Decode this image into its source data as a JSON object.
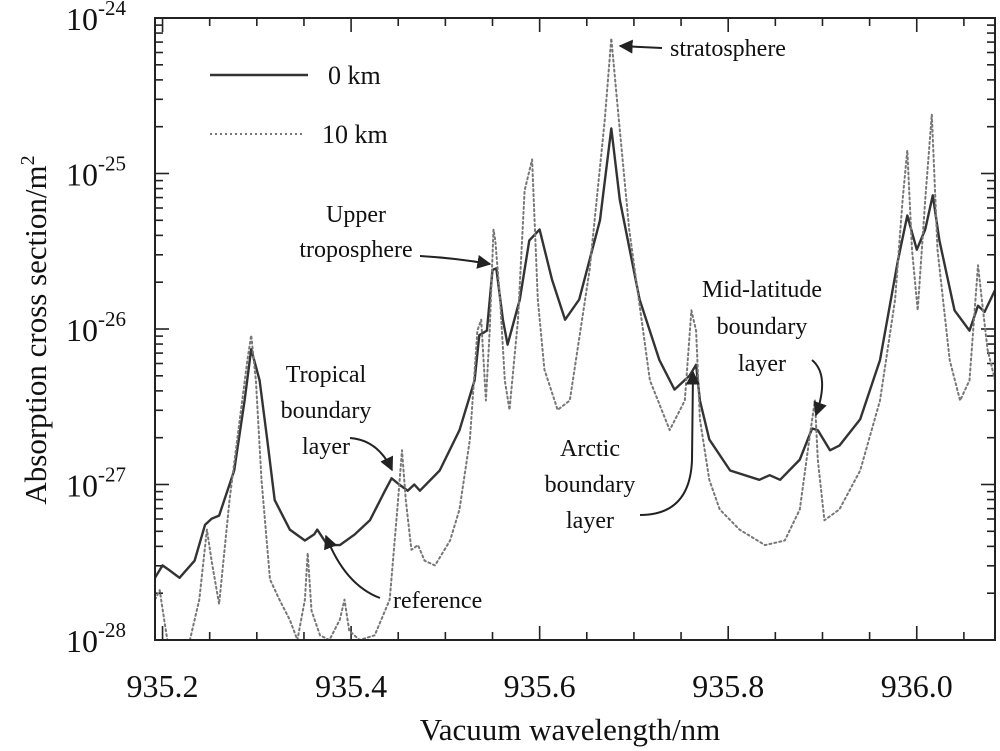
{
  "chart_data": {
    "type": "line",
    "title": "",
    "xlabel": "Vacuum wavelength/nm",
    "ylabel_text": "Absorption cross section/m",
    "ylabel_unit_exponent": "2",
    "y_scale": "log",
    "xlim": [
      935.192,
      936.083
    ],
    "ylim_log10": [
      -28,
      -24
    ],
    "x_ticks": [
      935.2,
      935.4,
      935.6,
      935.8,
      936.0
    ],
    "x_tick_labels": [
      "935.2",
      "935.4",
      "935.6",
      "935.8",
      "936.0"
    ],
    "y_ticks_log10": [
      -24,
      -25,
      -26,
      -27,
      -28
    ],
    "y_tick_labels": [
      {
        "base": "10",
        "exp": "-24"
      },
      {
        "base": "10",
        "exp": "-25"
      },
      {
        "base": "10",
        "exp": "-26"
      },
      {
        "base": "10",
        "exp": "-27"
      },
      {
        "base": "10",
        "exp": "-28"
      }
    ],
    "legend": {
      "placement": "top-left",
      "entries": [
        "0 km",
        "10 km"
      ]
    },
    "series": [
      {
        "name": "0 km",
        "style": "solid",
        "color": "#333333",
        "x": [
          935.192,
          935.2,
          935.207,
          935.218,
          935.234,
          935.245,
          935.252,
          935.26,
          935.276,
          935.287,
          935.294,
          935.303,
          935.311,
          935.319,
          935.335,
          935.351,
          935.361,
          935.364,
          935.375,
          935.388,
          935.404,
          935.42,
          935.436,
          935.443,
          935.451,
          935.46,
          935.467,
          935.473,
          935.494,
          935.515,
          935.531,
          935.536,
          935.544,
          935.55,
          935.554,
          935.561,
          935.566,
          935.579,
          935.589,
          935.6,
          935.613,
          935.627,
          935.642,
          935.664,
          935.676,
          935.685,
          935.706,
          935.727,
          935.743,
          935.759,
          935.766,
          935.77,
          935.78,
          935.802,
          935.833,
          935.844,
          935.855,
          935.876,
          935.889,
          935.895,
          935.908,
          935.918,
          935.94,
          935.961,
          935.98,
          935.99,
          936.0,
          936.009,
          936.017,
          936.024,
          936.04,
          936.056,
          936.065,
          936.072,
          936.083
        ],
        "log10_y": [
          -27.6,
          -27.52,
          -27.55,
          -27.6,
          -27.49,
          -27.26,
          -27.22,
          -27.2,
          -26.91,
          -26.46,
          -26.13,
          -26.33,
          -26.71,
          -27.1,
          -27.29,
          -27.36,
          -27.32,
          -27.29,
          -27.39,
          -27.39,
          -27.32,
          -27.23,
          -27.04,
          -26.96,
          -27.0,
          -27.04,
          -27.0,
          -27.04,
          -26.91,
          -26.65,
          -26.33,
          -26.04,
          -26.01,
          -25.62,
          -25.61,
          -25.94,
          -26.1,
          -25.81,
          -25.43,
          -25.36,
          -25.68,
          -25.94,
          -25.81,
          -25.3,
          -24.71,
          -25.17,
          -25.81,
          -26.2,
          -26.39,
          -26.3,
          -26.23,
          -26.46,
          -26.71,
          -26.91,
          -26.97,
          -26.94,
          -26.97,
          -26.84,
          -26.64,
          -26.65,
          -26.78,
          -26.75,
          -26.58,
          -26.2,
          -25.56,
          -25.27,
          -25.49,
          -25.36,
          -25.14,
          -25.43,
          -25.88,
          -26.01,
          -25.85,
          -25.89,
          -25.75
        ]
      },
      {
        "name": "10 km",
        "style": "dotted",
        "color": "#777777",
        "x": [
          935.192,
          935.197,
          935.205,
          935.218,
          935.229,
          935.239,
          935.247,
          935.252,
          935.26,
          935.271,
          935.282,
          935.29,
          935.294,
          935.299,
          935.305,
          935.314,
          935.324,
          935.335,
          935.343,
          935.351,
          935.354,
          935.358,
          935.367,
          935.377,
          935.388,
          935.393,
          935.398,
          935.409,
          935.425,
          935.441,
          935.449,
          935.454,
          935.458,
          935.464,
          935.471,
          935.478,
          935.489,
          935.505,
          935.515,
          935.526,
          935.534,
          935.538,
          935.543,
          935.547,
          935.551,
          935.553,
          935.558,
          935.563,
          935.568,
          935.577,
          935.584,
          935.592,
          935.598,
          935.605,
          935.619,
          935.632,
          935.653,
          935.669,
          935.676,
          935.683,
          935.695,
          935.717,
          935.738,
          935.754,
          935.761,
          935.766,
          935.77,
          935.78,
          935.791,
          935.812,
          935.839,
          935.86,
          935.876,
          935.886,
          935.892,
          935.895,
          935.902,
          935.918,
          935.94,
          935.961,
          935.977,
          935.985,
          935.99,
          935.995,
          936.001,
          936.009,
          936.016,
          936.022,
          936.035,
          936.046,
          936.056,
          936.065,
          936.069,
          936.075,
          936.083
        ],
        "log10_y": [
          -27.74,
          -27.68,
          -28.0,
          -28.06,
          -28.0,
          -27.74,
          -27.29,
          -27.49,
          -27.77,
          -27.1,
          -26.58,
          -26.2,
          -26.04,
          -26.33,
          -26.97,
          -27.61,
          -27.74,
          -27.87,
          -28.0,
          -27.74,
          -27.44,
          -27.81,
          -27.97,
          -28.0,
          -27.87,
          -27.74,
          -27.94,
          -28.0,
          -27.97,
          -27.74,
          -27.16,
          -26.78,
          -27.1,
          -27.42,
          -27.39,
          -27.49,
          -27.52,
          -27.36,
          -27.16,
          -26.71,
          -26.01,
          -25.94,
          -26.46,
          -26.01,
          -25.36,
          -25.43,
          -25.81,
          -26.33,
          -26.52,
          -25.94,
          -25.11,
          -24.91,
          -25.81,
          -26.26,
          -26.52,
          -26.46,
          -25.62,
          -24.66,
          -24.13,
          -24.59,
          -25.36,
          -26.33,
          -26.65,
          -26.46,
          -25.88,
          -26.01,
          -26.58,
          -26.97,
          -27.16,
          -27.29,
          -27.39,
          -27.36,
          -27.16,
          -26.71,
          -26.46,
          -26.84,
          -27.23,
          -27.16,
          -26.91,
          -26.46,
          -25.81,
          -25.17,
          -24.85,
          -25.49,
          -25.88,
          -25.17,
          -24.62,
          -25.49,
          -26.2,
          -26.46,
          -26.33,
          -25.59,
          -25.81,
          -26.13,
          -26.33
        ]
      }
    ],
    "annotations": [
      {
        "lines": [
          "stratosphere"
        ]
      },
      {
        "lines": [
          "Upper",
          "troposphere"
        ]
      },
      {
        "lines": [
          "Tropical",
          "boundary",
          "layer"
        ]
      },
      {
        "lines": [
          "reference"
        ]
      },
      {
        "lines": [
          "Arctic",
          "boundary",
          "layer"
        ]
      },
      {
        "lines": [
          "Mid-latitude",
          "boundary",
          "layer"
        ]
      }
    ],
    "grid": false
  }
}
